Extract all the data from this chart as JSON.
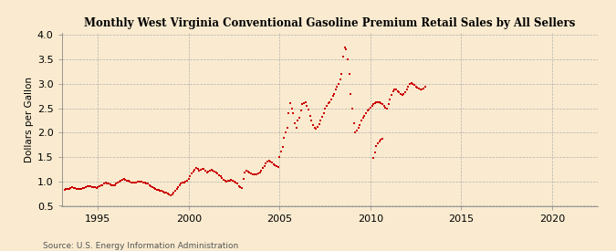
{
  "title": "Monthly West Virginia Conventional Gasoline Premium Retail Sales by All Sellers",
  "ylabel": "Dollars per Gallon",
  "source": "Source: U.S. Energy Information Administration",
  "background_color": "#faebd0",
  "plot_background_color": "#faebd0",
  "marker_color": "#cc0000",
  "xlim": [
    1993.0,
    2022.5
  ],
  "ylim": [
    0.5,
    4.05
  ],
  "yticks": [
    0.5,
    1.0,
    1.5,
    2.0,
    2.5,
    3.0,
    3.5,
    4.0
  ],
  "xticks": [
    1995,
    2000,
    2005,
    2010,
    2015,
    2020
  ],
  "data": [
    [
      1993.17,
      0.83
    ],
    [
      1993.25,
      0.85
    ],
    [
      1993.33,
      0.84
    ],
    [
      1993.42,
      0.85
    ],
    [
      1993.5,
      0.87
    ],
    [
      1993.58,
      0.88
    ],
    [
      1993.67,
      0.87
    ],
    [
      1993.75,
      0.86
    ],
    [
      1993.83,
      0.85
    ],
    [
      1993.92,
      0.84
    ],
    [
      1994.0,
      0.84
    ],
    [
      1994.08,
      0.85
    ],
    [
      1994.17,
      0.86
    ],
    [
      1994.25,
      0.87
    ],
    [
      1994.33,
      0.88
    ],
    [
      1994.42,
      0.9
    ],
    [
      1994.5,
      0.91
    ],
    [
      1994.58,
      0.9
    ],
    [
      1994.67,
      0.89
    ],
    [
      1994.75,
      0.88
    ],
    [
      1994.83,
      0.88
    ],
    [
      1994.92,
      0.87
    ],
    [
      1995.0,
      0.88
    ],
    [
      1995.08,
      0.9
    ],
    [
      1995.17,
      0.92
    ],
    [
      1995.25,
      0.93
    ],
    [
      1995.33,
      0.95
    ],
    [
      1995.42,
      0.97
    ],
    [
      1995.5,
      0.96
    ],
    [
      1995.58,
      0.95
    ],
    [
      1995.67,
      0.94
    ],
    [
      1995.75,
      0.93
    ],
    [
      1995.83,
      0.93
    ],
    [
      1995.92,
      0.93
    ],
    [
      1996.0,
      0.95
    ],
    [
      1996.08,
      0.98
    ],
    [
      1996.17,
      1.0
    ],
    [
      1996.25,
      1.02
    ],
    [
      1996.33,
      1.04
    ],
    [
      1996.42,
      1.05
    ],
    [
      1996.5,
      1.04
    ],
    [
      1996.58,
      1.02
    ],
    [
      1996.67,
      1.01
    ],
    [
      1996.75,
      0.99
    ],
    [
      1996.83,
      0.98
    ],
    [
      1996.92,
      0.97
    ],
    [
      1997.0,
      0.97
    ],
    [
      1997.08,
      0.98
    ],
    [
      1997.17,
      0.99
    ],
    [
      1997.25,
      1.0
    ],
    [
      1997.33,
      1.0
    ],
    [
      1997.42,
      0.99
    ],
    [
      1997.5,
      0.98
    ],
    [
      1997.58,
      0.97
    ],
    [
      1997.67,
      0.96
    ],
    [
      1997.75,
      0.95
    ],
    [
      1997.83,
      0.93
    ],
    [
      1997.92,
      0.91
    ],
    [
      1998.0,
      0.89
    ],
    [
      1998.08,
      0.87
    ],
    [
      1998.17,
      0.85
    ],
    [
      1998.25,
      0.83
    ],
    [
      1998.33,
      0.82
    ],
    [
      1998.42,
      0.81
    ],
    [
      1998.5,
      0.8
    ],
    [
      1998.58,
      0.79
    ],
    [
      1998.67,
      0.78
    ],
    [
      1998.75,
      0.77
    ],
    [
      1998.83,
      0.75
    ],
    [
      1998.92,
      0.73
    ],
    [
      1999.0,
      0.72
    ],
    [
      1999.08,
      0.74
    ],
    [
      1999.17,
      0.77
    ],
    [
      1999.25,
      0.8
    ],
    [
      1999.33,
      0.84
    ],
    [
      1999.42,
      0.88
    ],
    [
      1999.5,
      0.92
    ],
    [
      1999.58,
      0.95
    ],
    [
      1999.67,
      0.97
    ],
    [
      1999.75,
      0.98
    ],
    [
      1999.83,
      0.99
    ],
    [
      1999.92,
      1.02
    ],
    [
      2000.0,
      1.05
    ],
    [
      2000.08,
      1.1
    ],
    [
      2000.17,
      1.16
    ],
    [
      2000.25,
      1.2
    ],
    [
      2000.33,
      1.24
    ],
    [
      2000.42,
      1.27
    ],
    [
      2000.5,
      1.25
    ],
    [
      2000.58,
      1.22
    ],
    [
      2000.67,
      1.24
    ],
    [
      2000.75,
      1.26
    ],
    [
      2000.83,
      1.25
    ],
    [
      2000.92,
      1.22
    ],
    [
      2001.0,
      1.18
    ],
    [
      2001.08,
      1.2
    ],
    [
      2001.17,
      1.22
    ],
    [
      2001.25,
      1.23
    ],
    [
      2001.33,
      1.22
    ],
    [
      2001.42,
      1.2
    ],
    [
      2001.5,
      1.18
    ],
    [
      2001.58,
      1.16
    ],
    [
      2001.67,
      1.13
    ],
    [
      2001.75,
      1.1
    ],
    [
      2001.83,
      1.07
    ],
    [
      2001.92,
      1.04
    ],
    [
      2002.0,
      1.02
    ],
    [
      2002.08,
      1.0
    ],
    [
      2002.17,
      1.01
    ],
    [
      2002.25,
      1.02
    ],
    [
      2002.33,
      1.03
    ],
    [
      2002.42,
      1.02
    ],
    [
      2002.5,
      1.0
    ],
    [
      2002.58,
      0.98
    ],
    [
      2002.67,
      0.95
    ],
    [
      2002.75,
      0.91
    ],
    [
      2002.83,
      0.88
    ],
    [
      2002.92,
      0.87
    ],
    [
      2003.0,
      1.05
    ],
    [
      2003.08,
      1.18
    ],
    [
      2003.17,
      1.22
    ],
    [
      2003.25,
      1.2
    ],
    [
      2003.33,
      1.18
    ],
    [
      2003.42,
      1.17
    ],
    [
      2003.5,
      1.15
    ],
    [
      2003.58,
      1.14
    ],
    [
      2003.67,
      1.14
    ],
    [
      2003.75,
      1.15
    ],
    [
      2003.83,
      1.17
    ],
    [
      2003.92,
      1.19
    ],
    [
      2004.0,
      1.22
    ],
    [
      2004.08,
      1.27
    ],
    [
      2004.17,
      1.32
    ],
    [
      2004.25,
      1.37
    ],
    [
      2004.33,
      1.4
    ],
    [
      2004.42,
      1.42
    ],
    [
      2004.5,
      1.4
    ],
    [
      2004.58,
      1.38
    ],
    [
      2004.67,
      1.35
    ],
    [
      2004.75,
      1.33
    ],
    [
      2004.83,
      1.31
    ],
    [
      2004.92,
      1.3
    ],
    [
      2005.0,
      1.5
    ],
    [
      2005.08,
      1.62
    ],
    [
      2005.17,
      1.7
    ],
    [
      2005.25,
      1.9
    ],
    [
      2005.33,
      2.0
    ],
    [
      2005.42,
      2.1
    ],
    [
      2005.5,
      2.4
    ],
    [
      2005.58,
      2.6
    ],
    [
      2005.67,
      2.5
    ],
    [
      2005.75,
      2.4
    ],
    [
      2005.83,
      2.2
    ],
    [
      2005.92,
      2.1
    ],
    [
      2006.0,
      2.25
    ],
    [
      2006.08,
      2.3
    ],
    [
      2006.17,
      2.45
    ],
    [
      2006.25,
      2.58
    ],
    [
      2006.33,
      2.6
    ],
    [
      2006.42,
      2.62
    ],
    [
      2006.5,
      2.55
    ],
    [
      2006.58,
      2.48
    ],
    [
      2006.67,
      2.35
    ],
    [
      2006.75,
      2.25
    ],
    [
      2006.83,
      2.15
    ],
    [
      2006.92,
      2.1
    ],
    [
      2007.0,
      2.08
    ],
    [
      2007.08,
      2.12
    ],
    [
      2007.17,
      2.18
    ],
    [
      2007.25,
      2.25
    ],
    [
      2007.33,
      2.32
    ],
    [
      2007.42,
      2.4
    ],
    [
      2007.5,
      2.5
    ],
    [
      2007.58,
      2.55
    ],
    [
      2007.67,
      2.6
    ],
    [
      2007.75,
      2.62
    ],
    [
      2007.83,
      2.68
    ],
    [
      2007.92,
      2.75
    ],
    [
      2008.0,
      2.8
    ],
    [
      2008.08,
      2.88
    ],
    [
      2008.17,
      2.95
    ],
    [
      2008.25,
      3.0
    ],
    [
      2008.33,
      3.1
    ],
    [
      2008.42,
      3.2
    ],
    [
      2008.5,
      3.55
    ],
    [
      2008.58,
      3.75
    ],
    [
      2008.67,
      3.7
    ],
    [
      2008.75,
      3.5
    ],
    [
      2008.83,
      3.2
    ],
    [
      2008.92,
      2.8
    ],
    [
      2009.0,
      2.5
    ],
    [
      2009.08,
      2.2
    ],
    [
      2009.17,
      2.0
    ],
    [
      2009.25,
      2.05
    ],
    [
      2009.33,
      2.1
    ],
    [
      2009.42,
      2.15
    ],
    [
      2009.5,
      2.25
    ],
    [
      2009.58,
      2.3
    ],
    [
      2009.67,
      2.35
    ],
    [
      2009.75,
      2.4
    ],
    [
      2009.83,
      2.45
    ],
    [
      2009.92,
      2.48
    ],
    [
      2010.0,
      2.52
    ],
    [
      2010.08,
      2.55
    ],
    [
      2010.17,
      2.58
    ],
    [
      2010.25,
      2.6
    ],
    [
      2010.33,
      2.62
    ],
    [
      2010.42,
      2.63
    ],
    [
      2010.5,
      2.62
    ],
    [
      2010.58,
      2.6
    ],
    [
      2010.67,
      2.58
    ],
    [
      2010.75,
      2.55
    ],
    [
      2010.83,
      2.52
    ],
    [
      2010.92,
      2.5
    ],
    [
      2011.0,
      2.58
    ],
    [
      2011.08,
      2.68
    ],
    [
      2011.17,
      2.78
    ],
    [
      2011.25,
      2.85
    ],
    [
      2011.33,
      2.88
    ],
    [
      2011.42,
      2.88
    ],
    [
      2011.5,
      2.85
    ],
    [
      2011.58,
      2.82
    ],
    [
      2011.67,
      2.8
    ],
    [
      2011.75,
      2.78
    ],
    [
      2011.83,
      2.8
    ],
    [
      2011.92,
      2.82
    ],
    [
      2012.0,
      2.88
    ],
    [
      2012.08,
      2.95
    ],
    [
      2012.17,
      3.0
    ],
    [
      2012.25,
      3.02
    ],
    [
      2012.33,
      3.0
    ],
    [
      2012.42,
      2.98
    ],
    [
      2012.5,
      2.95
    ],
    [
      2012.58,
      2.92
    ],
    [
      2012.67,
      2.9
    ],
    [
      2012.75,
      2.88
    ],
    [
      2012.83,
      2.88
    ],
    [
      2012.92,
      2.9
    ],
    [
      2013.0,
      2.95
    ],
    [
      2010.17,
      1.48
    ],
    [
      2010.25,
      1.6
    ],
    [
      2010.33,
      1.72
    ],
    [
      2010.42,
      1.78
    ],
    [
      2010.5,
      1.82
    ],
    [
      2010.58,
      1.85
    ],
    [
      2010.67,
      1.88
    ]
  ]
}
